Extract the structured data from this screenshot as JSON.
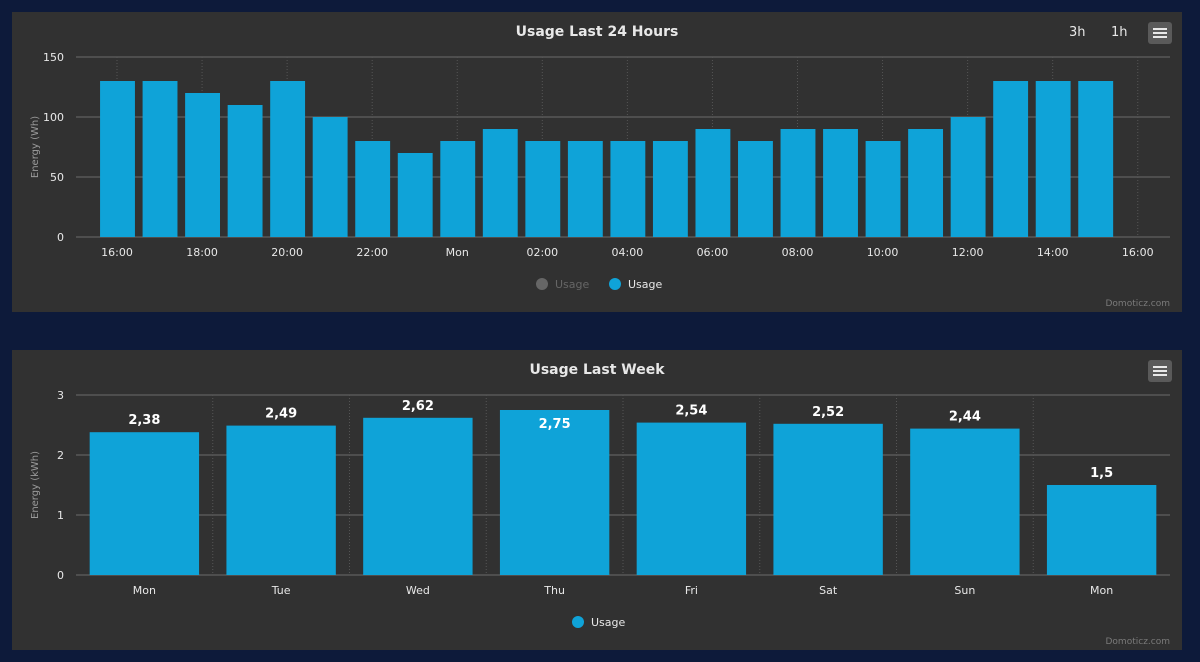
{
  "chart_data": [
    {
      "type": "bar",
      "title": "Usage Last 24 Hours",
      "ylabel": "Energy (Wh)",
      "xlabel": "",
      "ylim": [
        0,
        150
      ],
      "yticks": [
        0,
        50,
        100,
        150
      ],
      "xticks": [
        "16:00",
        "18:00",
        "20:00",
        "22:00",
        "Mon",
        "02:00",
        "04:00",
        "06:00",
        "08:00",
        "10:00",
        "12:00",
        "14:00",
        "16:00"
      ],
      "series": [
        {
          "name": "Usage",
          "visible": false,
          "values": []
        },
        {
          "name": "Usage",
          "visible": true,
          "values": [
            130,
            130,
            120,
            110,
            130,
            100,
            80,
            70,
            80,
            90,
            80,
            80,
            80,
            80,
            90,
            80,
            90,
            90,
            80,
            90,
            100,
            130,
            130,
            130
          ]
        }
      ],
      "legend_position": "bottom-center",
      "grid": true,
      "range_buttons": [
        "3h",
        "1h"
      ],
      "credit": "Domoticz.com"
    },
    {
      "type": "bar",
      "title": "Usage Last Week",
      "ylabel": "Energy (kWh)",
      "xlabel": "",
      "ylim": [
        0,
        3
      ],
      "yticks": [
        0,
        1,
        2,
        3
      ],
      "categories": [
        "Mon",
        "Tue",
        "Wed",
        "Thu",
        "Fri",
        "Sat",
        "Sun",
        "Mon"
      ],
      "series": [
        {
          "name": "Usage",
          "visible": true,
          "values": [
            2.38,
            2.49,
            2.62,
            2.75,
            2.54,
            2.52,
            2.44,
            1.5
          ]
        }
      ],
      "data_labels": [
        "2,38",
        "2,49",
        "2,62",
        "2,75",
        "2,54",
        "2,52",
        "2,44",
        "1,5"
      ],
      "legend_position": "bottom-center",
      "grid": true,
      "credit": "Domoticz.com"
    }
  ],
  "colors": {
    "bar": "#0fa3d8",
    "panel_bg": "#313131",
    "page_bg": "#0d1a3a",
    "grid": "#6b6b6b",
    "text": "#e8e8e8",
    "muted": "#9a9a9a",
    "legend_hidden": "#666666"
  },
  "icons": {
    "menu": "hamburger-menu-icon"
  }
}
